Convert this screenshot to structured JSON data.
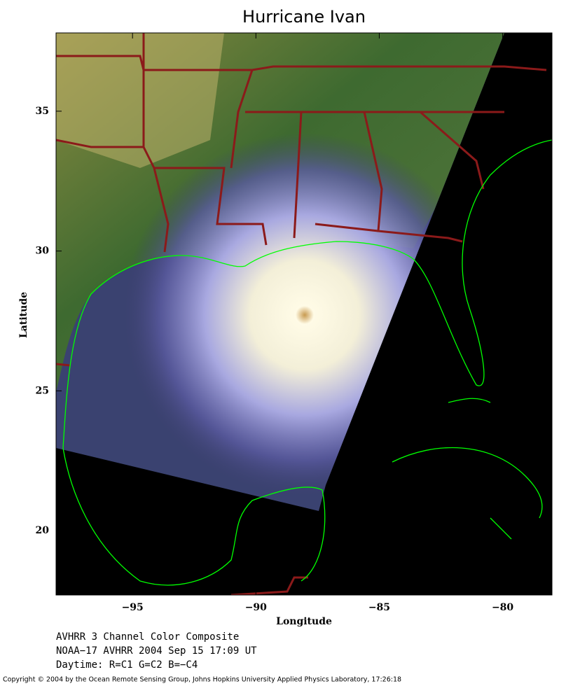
{
  "title": "Hurricane Ivan",
  "map": {
    "xlabel": "Longitude",
    "ylabel": "Latitude",
    "xlim": [
      -98.1,
      -78.0
    ],
    "ylim": [
      17.7,
      37.8
    ],
    "xticks": [
      {
        "value": -95,
        "label": "−95"
      },
      {
        "value": -90,
        "label": "−90"
      },
      {
        "value": -85,
        "label": "−85"
      },
      {
        "value": -80,
        "label": "−80"
      }
    ],
    "yticks": [
      20,
      25,
      30,
      35
    ]
  },
  "caption": [
    "AVHRR 3 Channel Color Composite",
    "NOAA−17 AVHRR 2004 Sep 15 17:09 UT",
    "Daytime: R=C1 G=C2 B=−C4"
  ],
  "copyright": "Copyright © 2004 by the Ocean Remote Sensing Group, Johns Hopkins University Applied Physics Laboratory, 17:26:18"
}
